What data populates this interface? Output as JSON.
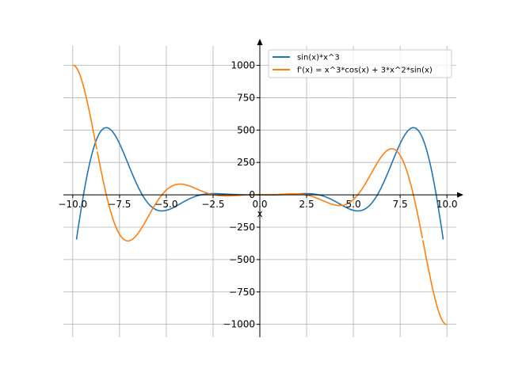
{
  "chart_data": {
    "type": "line",
    "xlabel": "x",
    "ylabel": "",
    "xlim": [
      -10.5,
      10.5
    ],
    "ylim": [
      -1100,
      1150
    ],
    "grid": true,
    "legend_position": "top-right",
    "x_ticks": [
      -10,
      -7.5,
      -5,
      -2.5,
      0,
      2.5,
      5,
      7.5,
      10
    ],
    "x_tick_labels": [
      "−10.0",
      "−7.5",
      "−5.0",
      "−2.5",
      "0.0",
      "2.5",
      "5.0",
      "7.5",
      "10.0"
    ],
    "y_ticks": [
      -1000,
      -750,
      -500,
      -250,
      0,
      250,
      500,
      750,
      1000
    ],
    "y_tick_labels": [
      "−1000",
      "−750",
      "−500",
      "−250",
      "0",
      "250",
      "500",
      "750",
      "1000"
    ],
    "series": [
      {
        "name": "sin(x)*x^3",
        "color": "#1f77b4",
        "expr": "sin(x)*x^3",
        "x_range": [
          -9.8,
          9.8
        ]
      },
      {
        "name": "f'(x) = x^3*cos(x) + 3*x^2*sin(x)",
        "color": "#ff7f0e",
        "expr": "x^3*cos(x) + 3*x^2*sin(x)",
        "x_range": [
          -10,
          10
        ],
        "clip_y": [
          -1000,
          1000
        ],
        "breaks_x": [
          -8.7,
          8.7
        ]
      }
    ]
  }
}
